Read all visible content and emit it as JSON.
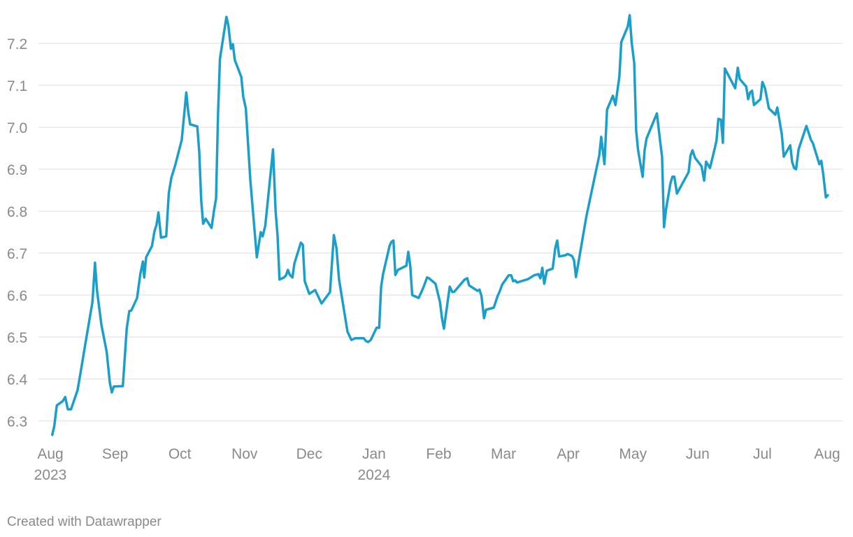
{
  "chart_data": {
    "type": "line",
    "credit": "Created with Datawrapper",
    "xlim": [
      0,
      12
    ],
    "xticks": [
      {
        "value": 0,
        "label": "Aug"
      },
      {
        "value": 1,
        "label": "Sep"
      },
      {
        "value": 2,
        "label": "Oct"
      },
      {
        "value": 3,
        "label": "Nov"
      },
      {
        "value": 4,
        "label": "Dec"
      },
      {
        "value": 5,
        "label": "Jan"
      },
      {
        "value": 6,
        "label": "Feb"
      },
      {
        "value": 7,
        "label": "Mar"
      },
      {
        "value": 8,
        "label": "Apr"
      },
      {
        "value": 9,
        "label": "May"
      },
      {
        "value": 10,
        "label": "Jun"
      },
      {
        "value": 11,
        "label": "Jul"
      },
      {
        "value": 12,
        "label": "Aug"
      }
    ],
    "x_year_labels": [
      {
        "value": 0,
        "label": "2023"
      },
      {
        "value": 5,
        "label": "2024"
      }
    ],
    "ylim": [
      6.25,
      7.28
    ],
    "yticks": [
      6.3,
      6.4,
      6.5,
      6.6,
      6.7,
      6.8,
      6.9,
      {
        "value": 7,
        "label": "7.0"
      },
      7.1,
      7.2
    ],
    "grid": true,
    "color": "#1a9fcb",
    "x": [
      0.03,
      0.06,
      0.1,
      0.19,
      0.23,
      0.27,
      0.32,
      0.42,
      0.48,
      0.54,
      0.65,
      0.69,
      0.72,
      0.79,
      0.87,
      0.92,
      0.95,
      0.98,
      1.12,
      1.18,
      1.22,
      1.25,
      1.34,
      1.39,
      1.43,
      1.45,
      1.48,
      1.57,
      1.61,
      1.64,
      1.67,
      1.71,
      1.79,
      1.83,
      1.87,
      1.93,
      2.03,
      2.1,
      2.13,
      2.16,
      2.27,
      2.3,
      2.33,
      2.36,
      2.4,
      2.49,
      2.53,
      2.56,
      2.59,
      2.62,
      2.68,
      2.72,
      2.75,
      2.79,
      2.82,
      2.85,
      2.95,
      2.98,
      3.02,
      3.09,
      3.19,
      3.25,
      3.28,
      3.32,
      3.44,
      3.48,
      3.51,
      3.54,
      3.61,
      3.64,
      3.67,
      3.7,
      3.74,
      3.77,
      3.87,
      3.9,
      3.93,
      4.0,
      4.09,
      4.19,
      4.32,
      4.38,
      4.42,
      4.46,
      4.59,
      4.65,
      4.71,
      4.84,
      4.88,
      4.91,
      4.95,
      5.04,
      5.08,
      5.11,
      5.14,
      5.24,
      5.27,
      5.3,
      5.33,
      5.37,
      5.5,
      5.53,
      5.56,
      5.59,
      5.69,
      5.76,
      5.82,
      5.85,
      5.95,
      6.02,
      6.05,
      6.08,
      6.17,
      6.21,
      6.24,
      6.4,
      6.44,
      6.47,
      6.6,
      6.63,
      6.66,
      6.7,
      6.73,
      6.85,
      6.91,
      6.94,
      6.98,
      7.04,
      7.08,
      7.12,
      7.15,
      7.18,
      7.21,
      7.38,
      7.47,
      7.54,
      7.57,
      7.6,
      7.63,
      7.67,
      7.76,
      7.8,
      7.83,
      7.86,
      7.96,
      7.99,
      8.06,
      8.09,
      8.12,
      8.28,
      8.48,
      8.51,
      8.56,
      8.6,
      8.69,
      8.73,
      8.76,
      8.79,
      8.82,
      8.92,
      8.95,
      8.98,
      9.02,
      9.05,
      9.08,
      9.15,
      9.18,
      9.21,
      9.37,
      9.42,
      9.45,
      9.48,
      9.51,
      9.58,
      9.61,
      9.64,
      9.68,
      9.86,
      9.89,
      9.92,
      9.96,
      10.06,
      10.1,
      10.13,
      10.19,
      10.23,
      10.29,
      10.32,
      10.36,
      10.39,
      10.42,
      10.58,
      10.62,
      10.65,
      10.75,
      10.78,
      10.81,
      10.84,
      10.87,
      10.97,
      11.0,
      11.04,
      11.1,
      11.2,
      11.23,
      11.3,
      11.33,
      11.43,
      11.46,
      11.49,
      11.52,
      11.56,
      11.68,
      11.75,
      11.78,
      11.88,
      11.91,
      11.94,
      11.98,
      12.01
    ],
    "values": [
      6.267,
      6.287,
      6.337,
      6.347,
      6.357,
      6.328,
      6.328,
      6.373,
      6.427,
      6.483,
      6.583,
      6.677,
      6.612,
      6.528,
      6.465,
      6.39,
      6.368,
      6.382,
      6.383,
      6.52,
      6.562,
      6.563,
      6.593,
      6.65,
      6.68,
      6.642,
      6.69,
      6.717,
      6.753,
      6.767,
      6.797,
      6.737,
      6.74,
      6.843,
      6.88,
      6.91,
      6.97,
      7.083,
      7.037,
      7.007,
      7.002,
      6.942,
      6.828,
      6.77,
      6.782,
      6.76,
      6.803,
      6.83,
      7.028,
      7.163,
      7.223,
      7.263,
      7.243,
      7.187,
      7.198,
      7.16,
      7.12,
      7.073,
      7.045,
      6.873,
      6.69,
      6.75,
      6.74,
      6.765,
      6.947,
      6.8,
      6.742,
      6.637,
      6.642,
      6.647,
      6.66,
      6.648,
      6.642,
      6.675,
      6.725,
      6.72,
      6.633,
      6.603,
      6.612,
      6.58,
      6.607,
      6.743,
      6.712,
      6.637,
      6.513,
      6.493,
      6.497,
      6.497,
      6.49,
      6.488,
      6.493,
      6.522,
      6.522,
      6.62,
      6.65,
      6.717,
      6.727,
      6.73,
      6.648,
      6.66,
      6.67,
      6.703,
      6.67,
      6.6,
      6.593,
      6.617,
      6.642,
      6.64,
      6.627,
      6.583,
      6.545,
      6.52,
      6.62,
      6.607,
      6.608,
      6.637,
      6.64,
      6.623,
      6.61,
      6.613,
      6.598,
      6.545,
      6.565,
      6.57,
      6.598,
      6.608,
      6.625,
      6.638,
      6.647,
      6.647,
      6.633,
      6.635,
      6.63,
      6.638,
      6.647,
      6.65,
      6.64,
      6.665,
      6.627,
      6.658,
      6.663,
      6.712,
      6.73,
      6.692,
      6.695,
      6.698,
      6.693,
      6.683,
      6.643,
      6.787,
      6.933,
      6.977,
      6.912,
      7.042,
      7.075,
      7.053,
      7.087,
      7.12,
      7.203,
      7.24,
      7.267,
      7.203,
      7.153,
      6.992,
      6.945,
      6.882,
      6.945,
      6.973,
      7.033,
      6.967,
      6.93,
      6.762,
      6.803,
      6.867,
      6.882,
      6.882,
      6.842,
      6.893,
      6.933,
      6.945,
      6.927,
      6.907,
      6.873,
      6.918,
      6.903,
      6.928,
      6.967,
      7.02,
      7.018,
      6.963,
      7.14,
      7.093,
      7.142,
      7.115,
      7.097,
      7.067,
      7.083,
      7.087,
      7.053,
      7.067,
      7.108,
      7.093,
      7.045,
      7.03,
      7.047,
      6.983,
      6.93,
      6.957,
      6.917,
      6.903,
      6.9,
      6.948,
      7.003,
      6.97,
      6.962,
      6.912,
      6.92,
      6.888,
      6.833,
      6.838
    ]
  }
}
